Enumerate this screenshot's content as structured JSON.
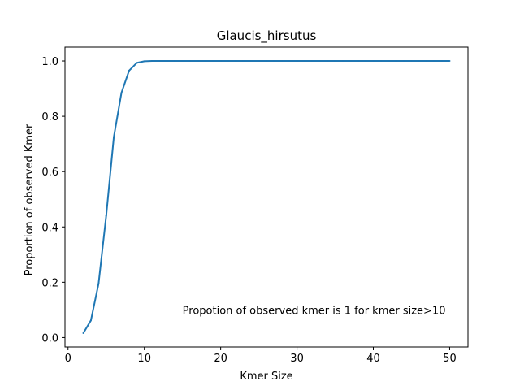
{
  "chart_data": {
    "type": "line",
    "title": "Glaucis_hirsutus",
    "xlabel": "Kmer Size",
    "ylabel": "Proportion of observed Kmer",
    "xlim": [
      -0.4,
      52.4
    ],
    "ylim": [
      -0.034,
      1.05
    ],
    "xticks": [
      0,
      10,
      20,
      30,
      40,
      50
    ],
    "yticks": [
      0.0,
      0.2,
      0.4,
      0.6,
      0.8,
      1.0
    ],
    "xtick_labels": [
      "0",
      "10",
      "20",
      "30",
      "40",
      "50"
    ],
    "ytick_labels": [
      "0.0",
      "0.2",
      "0.4",
      "0.6",
      "0.8",
      "1.0"
    ],
    "grid": false,
    "line_color": "#1f77b4",
    "annotation": {
      "text": "Propotion of observed kmer is 1 for kmer size>10",
      "x": 15,
      "y": 0.1
    },
    "series": [
      {
        "x": [
          2,
          3,
          4,
          5,
          6,
          7,
          8,
          9,
          10,
          11,
          12,
          13,
          14,
          15,
          16,
          17,
          18,
          19,
          20,
          21,
          22,
          23,
          24,
          25,
          26,
          27,
          28,
          29,
          30,
          31,
          32,
          33,
          34,
          35,
          36,
          37,
          38,
          39,
          40,
          41,
          42,
          43,
          44,
          45,
          46,
          47,
          48,
          49,
          50
        ],
        "values": [
          0.016,
          0.062,
          0.195,
          0.44,
          0.725,
          0.885,
          0.965,
          0.993,
          0.999,
          1.0,
          1.0,
          1.0,
          1.0,
          1.0,
          1.0,
          1.0,
          1.0,
          1.0,
          1.0,
          1.0,
          1.0,
          1.0,
          1.0,
          1.0,
          1.0,
          1.0,
          1.0,
          1.0,
          1.0,
          1.0,
          1.0,
          1.0,
          1.0,
          1.0,
          1.0,
          1.0,
          1.0,
          1.0,
          1.0,
          1.0,
          1.0,
          1.0,
          1.0,
          1.0,
          1.0,
          1.0,
          1.0,
          1.0,
          1.0
        ]
      }
    ]
  }
}
